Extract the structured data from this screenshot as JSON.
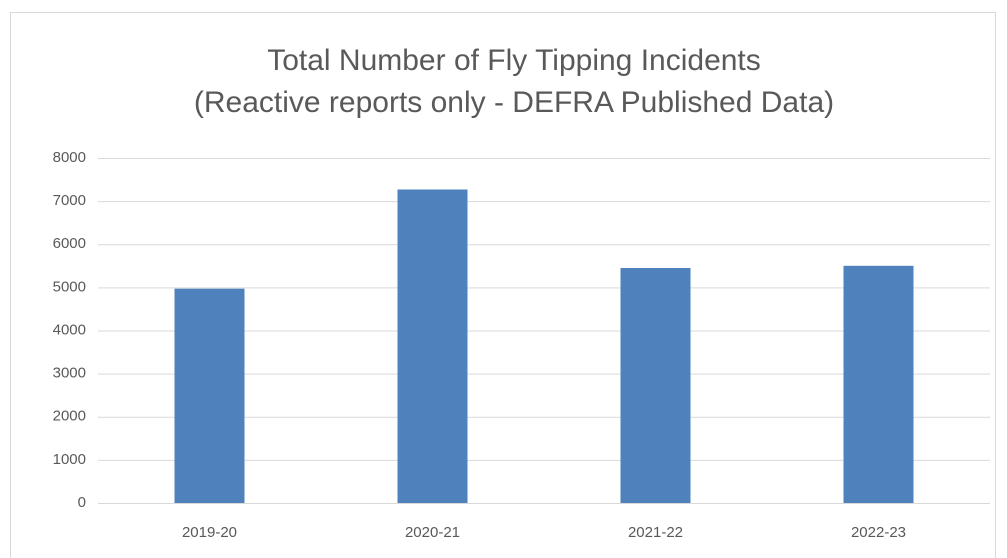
{
  "chart_data": {
    "type": "bar",
    "title": "Total Number of Fly Tipping Incidents",
    "subtitle": "(Reactive reports only - DEFRA Published Data)",
    "categories": [
      "2019-20",
      "2020-21",
      "2021-22",
      "2022-23"
    ],
    "values": [
      4970,
      7270,
      5450,
      5500
    ],
    "color": "#4f81bd",
    "ylim": [
      0,
      8000
    ],
    "yticks": [
      0,
      1000,
      2000,
      3000,
      4000,
      5000,
      6000,
      7000,
      8000
    ],
    "grid": true
  }
}
